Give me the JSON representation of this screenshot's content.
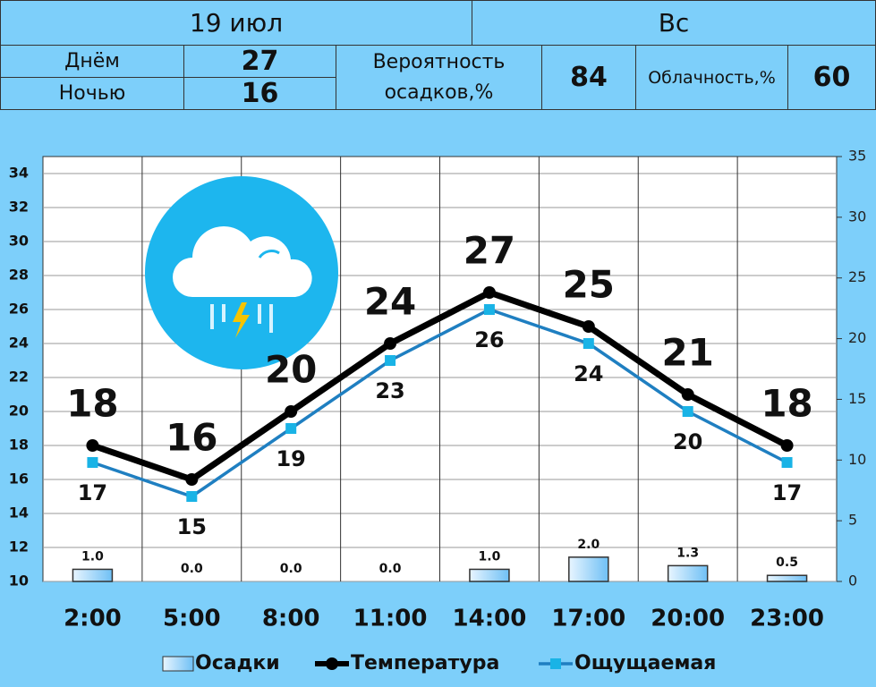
{
  "header": {
    "date": "19 июл",
    "weekday": "Вс"
  },
  "summary": {
    "day_label": "Днём",
    "day_value": 27,
    "night_label": "Ночью",
    "night_value": 16,
    "precip_label": "Вероятность осадков,%",
    "precip_value": 84,
    "cloud_label": "Облачность,%",
    "cloud_value": 60
  },
  "chart_data": {
    "type": "combo",
    "categories": [
      "2:00",
      "5:00",
      "8:00",
      "11:00",
      "14:00",
      "17:00",
      "20:00",
      "23:00"
    ],
    "series": [
      {
        "name": "Осадки",
        "type": "bar",
        "axis": "y2",
        "color": "#bfe3fb",
        "values": [
          1.0,
          0,
          0,
          0,
          1.0,
          2.0,
          1.3,
          0.5
        ],
        "value_labels": [
          "1.0",
          "0.0",
          "0.0",
          "0.0",
          "1.0",
          "2.0",
          "1.3",
          "0.5"
        ]
      },
      {
        "name": "Температура",
        "type": "line",
        "color": "#000000",
        "values": [
          18,
          16,
          20,
          24,
          27,
          25,
          21,
          18
        ]
      },
      {
        "name": "Ощущаемая",
        "type": "line",
        "color": "#1f7fc1",
        "marker_color": "#19b3e6",
        "values": [
          17,
          15,
          19,
          23,
          26,
          24,
          20,
          17
        ]
      }
    ],
    "ylim": [
      10,
      35
    ],
    "yticks": [
      10,
      12,
      14,
      16,
      18,
      20,
      22,
      24,
      26,
      28,
      30,
      32,
      34
    ],
    "y2lim": [
      0,
      35
    ],
    "y2ticks": [
      0,
      5,
      10,
      15,
      20,
      25,
      30,
      35
    ],
    "grid": true
  }
}
